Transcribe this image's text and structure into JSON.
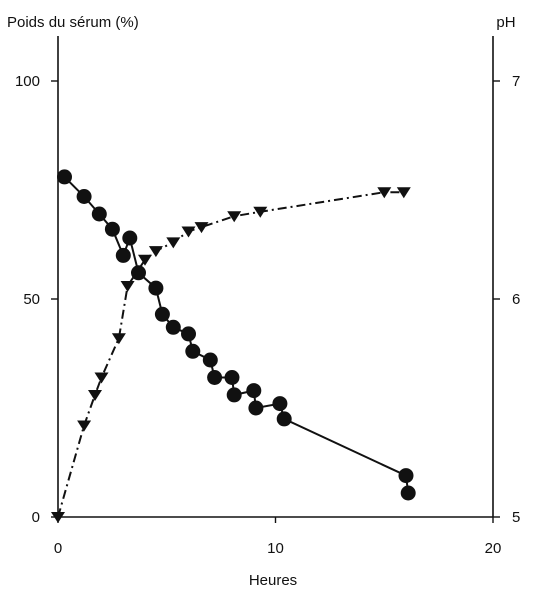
{
  "chart_data": {
    "type": "line",
    "xlabel": "Heures",
    "ylabel_left": "Poids du sérum (%)",
    "ylabel_right": "pH",
    "xlim": [
      0,
      20
    ],
    "ylim_left": [
      0,
      100
    ],
    "ylim_right": [
      5,
      7
    ],
    "x_ticks": [
      "0",
      "10",
      "20"
    ],
    "y_left_ticks": [
      "0",
      "50",
      "100"
    ],
    "y_right_ticks": [
      "5",
      "6",
      "7"
    ],
    "grid": false,
    "series": [
      {
        "marker": "circle",
        "axis": "left",
        "line_style": "solid",
        "color": "#111111",
        "points": [
          {
            "x": 0.3,
            "y": 78
          },
          {
            "x": 1.2,
            "y": 73.5
          },
          {
            "x": 1.9,
            "y": 69.5
          },
          {
            "x": 2.5,
            "y": 66
          },
          {
            "x": 3.0,
            "y": 60
          },
          {
            "x": 3.3,
            "y": 64
          },
          {
            "x": 3.7,
            "y": 56
          },
          {
            "x": 4.5,
            "y": 52.5
          },
          {
            "x": 4.8,
            "y": 46.5
          },
          {
            "x": 5.3,
            "y": 43.5
          },
          {
            "x": 6.0,
            "y": 42
          },
          {
            "x": 6.2,
            "y": 38
          },
          {
            "x": 7.0,
            "y": 36
          },
          {
            "x": 7.2,
            "y": 32
          },
          {
            "x": 8.0,
            "y": 32
          },
          {
            "x": 8.1,
            "y": 28
          },
          {
            "x": 9.0,
            "y": 29
          },
          {
            "x": 9.1,
            "y": 25
          },
          {
            "x": 10.2,
            "y": 26
          },
          {
            "x": 10.4,
            "y": 22.5
          },
          {
            "x": 16.0,
            "y": 9.5
          },
          {
            "x": 16.1,
            "y": 5.5
          }
        ]
      },
      {
        "marker": "triangle-down",
        "axis": "right",
        "line_style": "dashed",
        "color": "#111111",
        "points": [
          {
            "x": 0,
            "y": 5.0
          },
          {
            "x": 1.2,
            "y": 5.42
          },
          {
            "x": 1.7,
            "y": 5.56
          },
          {
            "x": 2.0,
            "y": 5.64
          },
          {
            "x": 2.8,
            "y": 5.82
          },
          {
            "x": 3.2,
            "y": 6.06
          },
          {
            "x": 4.0,
            "y": 6.18
          },
          {
            "x": 4.5,
            "y": 6.22
          },
          {
            "x": 5.3,
            "y": 6.26
          },
          {
            "x": 6.0,
            "y": 6.31
          },
          {
            "x": 6.6,
            "y": 6.33
          },
          {
            "x": 8.1,
            "y": 6.38
          },
          {
            "x": 9.3,
            "y": 6.4
          },
          {
            "x": 15.0,
            "y": 6.49
          },
          {
            "x": 15.9,
            "y": 6.49
          }
        ]
      }
    ]
  }
}
